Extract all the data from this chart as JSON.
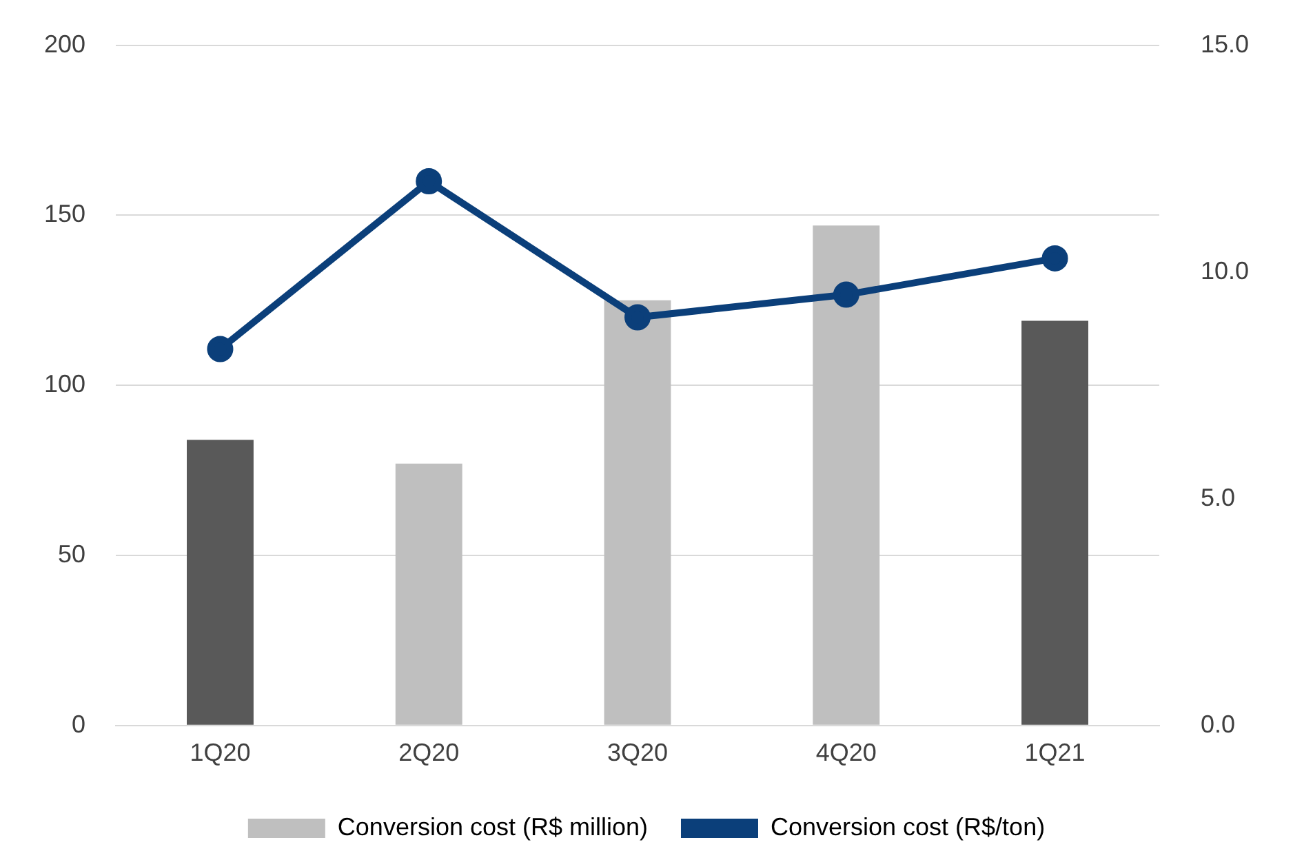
{
  "chart_data": {
    "type": "bar",
    "categories": [
      "1Q20",
      "2Q20",
      "3Q20",
      "4Q20",
      "1Q21"
    ],
    "series": [
      {
        "name": "Conversion cost (R$ million)",
        "color": "#bfbfbf",
        "colors": [
          "#595959",
          "#bfbfbf",
          "#bfbfbf",
          "#bfbfbf",
          "#595959"
        ],
        "values": [
          84,
          77,
          125,
          147,
          119
        ]
      },
      {
        "name": "Conversion cost (R$/ton)",
        "type": "line",
        "axis": "y2",
        "color": "#0b3f7a",
        "values": [
          8.3,
          12.0,
          9.0,
          9.5,
          10.3
        ]
      }
    ],
    "ylim": [
      0,
      200
    ],
    "yticks": [
      0,
      50,
      100,
      150,
      200
    ],
    "y2lim": [
      0,
      15
    ],
    "y2ticks": [
      {
        "value": 0,
        "label": "0.0"
      },
      {
        "value": 5,
        "label": "5.0"
      },
      {
        "value": 10,
        "label": "10.0"
      },
      {
        "value": 15,
        "label": "15.0"
      }
    ],
    "grid": "y",
    "legend": "bottom",
    "marker": "circle",
    "line_style": "solid"
  }
}
